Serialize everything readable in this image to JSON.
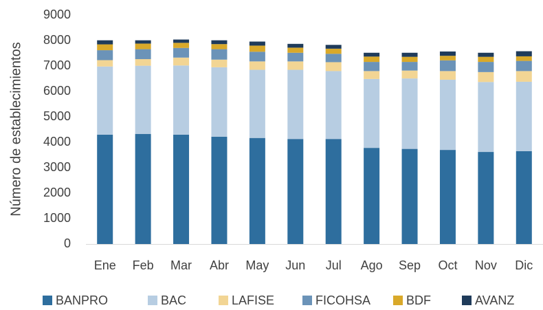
{
  "chart_data": {
    "type": "stacked_bar",
    "y_label": "Número de establecimientos",
    "categories": [
      "Ene",
      "Feb",
      "Mar",
      "Abr",
      "May",
      "Jun",
      "Jul",
      "Ago",
      "Sep",
      "Oct",
      "Nov",
      "Dic"
    ],
    "series": [
      {
        "name": "BANPRO",
        "color": "#2e6e9e",
        "values": [
          4300,
          4330,
          4300,
          4220,
          4170,
          4130,
          4130,
          3780,
          3740,
          3700,
          3620,
          3650
        ]
      },
      {
        "name": "BAC",
        "color": "#b7cde2",
        "values": [
          2680,
          2680,
          2720,
          2730,
          2680,
          2720,
          2670,
          2710,
          2770,
          2760,
          2750,
          2730
        ]
      },
      {
        "name": "LAFISE",
        "color": "#f2d594",
        "values": [
          250,
          260,
          310,
          300,
          330,
          330,
          350,
          310,
          310,
          340,
          390,
          420
        ]
      },
      {
        "name": "FICOHSA",
        "color": "#6b93b8",
        "values": [
          390,
          390,
          380,
          410,
          380,
          340,
          330,
          360,
          340,
          420,
          400,
          400
        ]
      },
      {
        "name": "BDF",
        "color": "#d9a92a",
        "values": [
          230,
          220,
          200,
          200,
          240,
          200,
          200,
          210,
          200,
          180,
          200,
          180
        ]
      },
      {
        "name": "AVANZ",
        "color": "#1f3b5a",
        "values": [
          160,
          130,
          130,
          150,
          160,
          150,
          150,
          150,
          160,
          170,
          160,
          200
        ]
      }
    ],
    "ylim": [
      0,
      9000
    ],
    "yticks": [
      0,
      1000,
      2000,
      3000,
      4000,
      5000,
      6000,
      7000,
      8000,
      9000
    ],
    "grid": false,
    "legend": "bottom"
  }
}
